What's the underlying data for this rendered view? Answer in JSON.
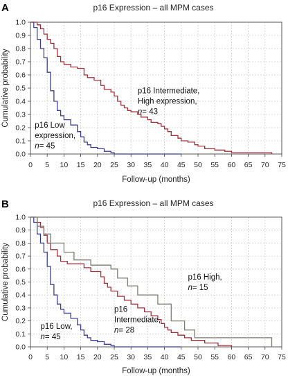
{
  "chart_data": [
    {
      "panel": "A",
      "type": "line",
      "title": "p16 Expression – all MPM cases",
      "xlabel": "Follow-up (months)",
      "ylabel": "Cumulative probability",
      "xlim": [
        0,
        75
      ],
      "ylim": [
        0,
        1.0
      ],
      "xticks": [
        0,
        5,
        10,
        15,
        20,
        25,
        30,
        35,
        40,
        45,
        50,
        55,
        60,
        65,
        70,
        75
      ],
      "yticks": [
        0.0,
        0.1,
        0.2,
        0.3,
        0.4,
        0.5,
        0.6,
        0.7,
        0.8,
        0.9,
        1.0
      ],
      "grid": true,
      "series": [
        {
          "color": "#3b3f8f",
          "x": [
            0,
            1,
            2,
            3,
            4,
            5,
            6,
            7,
            8,
            9,
            10,
            12,
            14,
            15,
            16,
            17,
            18,
            20,
            22,
            24,
            25,
            45
          ],
          "y": [
            1.0,
            0.96,
            0.87,
            0.8,
            0.73,
            0.62,
            0.48,
            0.4,
            0.33,
            0.29,
            0.26,
            0.22,
            0.17,
            0.13,
            0.09,
            0.07,
            0.05,
            0.04,
            0.02,
            0.01,
            0.0,
            0.0
          ]
        },
        {
          "color": "#a0303a",
          "x": [
            0,
            2,
            3,
            4,
            5,
            6,
            7,
            8,
            9,
            10,
            12,
            14,
            16,
            17,
            19,
            21,
            22,
            24,
            25,
            26,
            27,
            28,
            29,
            30,
            32,
            33,
            35,
            36,
            38,
            39,
            40,
            41,
            42,
            44,
            45,
            47,
            49,
            50,
            52,
            55,
            58,
            60,
            72
          ],
          "y": [
            1.0,
            0.98,
            0.95,
            0.91,
            0.87,
            0.84,
            0.8,
            0.74,
            0.7,
            0.68,
            0.66,
            0.65,
            0.6,
            0.58,
            0.56,
            0.52,
            0.49,
            0.47,
            0.44,
            0.4,
            0.37,
            0.35,
            0.33,
            0.32,
            0.3,
            0.28,
            0.26,
            0.24,
            0.23,
            0.21,
            0.19,
            0.17,
            0.14,
            0.12,
            0.1,
            0.09,
            0.07,
            0.06,
            0.04,
            0.03,
            0.02,
            0.01,
            0.0
          ]
        }
      ],
      "annotations": [
        {
          "lines": [
            "p16 Intermediate,",
            "High expression,"
          ],
          "n_prefix": "n",
          "n_value": "= 43",
          "x": 32,
          "y": 0.46
        },
        {
          "lines": [
            "p16 Low",
            "expression,"
          ],
          "n_prefix": "n",
          "n_value": "= 45",
          "x": 1.3,
          "y": 0.2
        }
      ]
    },
    {
      "panel": "B",
      "type": "line",
      "title": "p16 Expression – all MPM cases",
      "xlabel": "Follow-up (months)",
      "ylabel": "Cumulative probability",
      "xlim": [
        0,
        75
      ],
      "ylim": [
        0,
        1.0
      ],
      "xticks": [
        0,
        5,
        10,
        15,
        20,
        25,
        30,
        35,
        40,
        45,
        50,
        55,
        60,
        65,
        70,
        75
      ],
      "yticks": [
        0.0,
        0.1,
        0.2,
        0.3,
        0.4,
        0.5,
        0.6,
        0.7,
        0.8,
        0.9,
        1.0
      ],
      "grid": true,
      "series": [
        {
          "color": "#3b3f8f",
          "x": [
            0,
            1,
            2,
            3,
            4,
            5,
            6,
            7,
            8,
            9,
            10,
            12,
            14,
            15,
            16,
            17,
            18,
            20,
            22,
            24,
            25,
            45
          ],
          "y": [
            1.0,
            0.96,
            0.87,
            0.8,
            0.73,
            0.62,
            0.48,
            0.4,
            0.33,
            0.29,
            0.26,
            0.22,
            0.17,
            0.13,
            0.09,
            0.07,
            0.05,
            0.04,
            0.02,
            0.01,
            0.0,
            0.0
          ]
        },
        {
          "color": "#a0303a",
          "x": [
            0,
            2,
            3,
            4,
            5,
            6,
            8,
            9,
            11,
            13,
            16,
            18,
            21,
            22,
            23,
            24,
            26,
            28,
            30,
            32,
            34,
            36,
            38,
            39,
            40,
            41,
            42,
            44,
            46,
            48,
            52,
            56,
            60
          ],
          "y": [
            1.0,
            0.96,
            0.92,
            0.86,
            0.8,
            0.75,
            0.7,
            0.66,
            0.64,
            0.64,
            0.61,
            0.58,
            0.54,
            0.49,
            0.46,
            0.43,
            0.39,
            0.36,
            0.33,
            0.3,
            0.27,
            0.24,
            0.21,
            0.18,
            0.15,
            0.13,
            0.11,
            0.09,
            0.07,
            0.05,
            0.03,
            0.01,
            0.0
          ]
        },
        {
          "color": "#7a7e74",
          "x": [
            0,
            2,
            4,
            6,
            10,
            13,
            18,
            24,
            26,
            29,
            32,
            34,
            38,
            42,
            46,
            49,
            52,
            72
          ],
          "y": [
            1.0,
            0.93,
            0.87,
            0.8,
            0.73,
            0.67,
            0.63,
            0.6,
            0.53,
            0.47,
            0.4,
            0.4,
            0.33,
            0.2,
            0.13,
            0.07,
            0.07,
            0.0
          ]
        }
      ],
      "annotations": [
        {
          "lines": [
            "p16 High,"
          ],
          "n_prefix": "n",
          "n_value": "= 15",
          "x": 47,
          "y": 0.52
        },
        {
          "lines": [
            "p16",
            "Intermediate,"
          ],
          "n_prefix": "n",
          "n_value": "= 28",
          "x": 25,
          "y": 0.27
        },
        {
          "lines": [
            "p16 Low,"
          ],
          "n_prefix": "n",
          "n_value": "= 45",
          "x": 3,
          "y": 0.14
        }
      ]
    }
  ]
}
